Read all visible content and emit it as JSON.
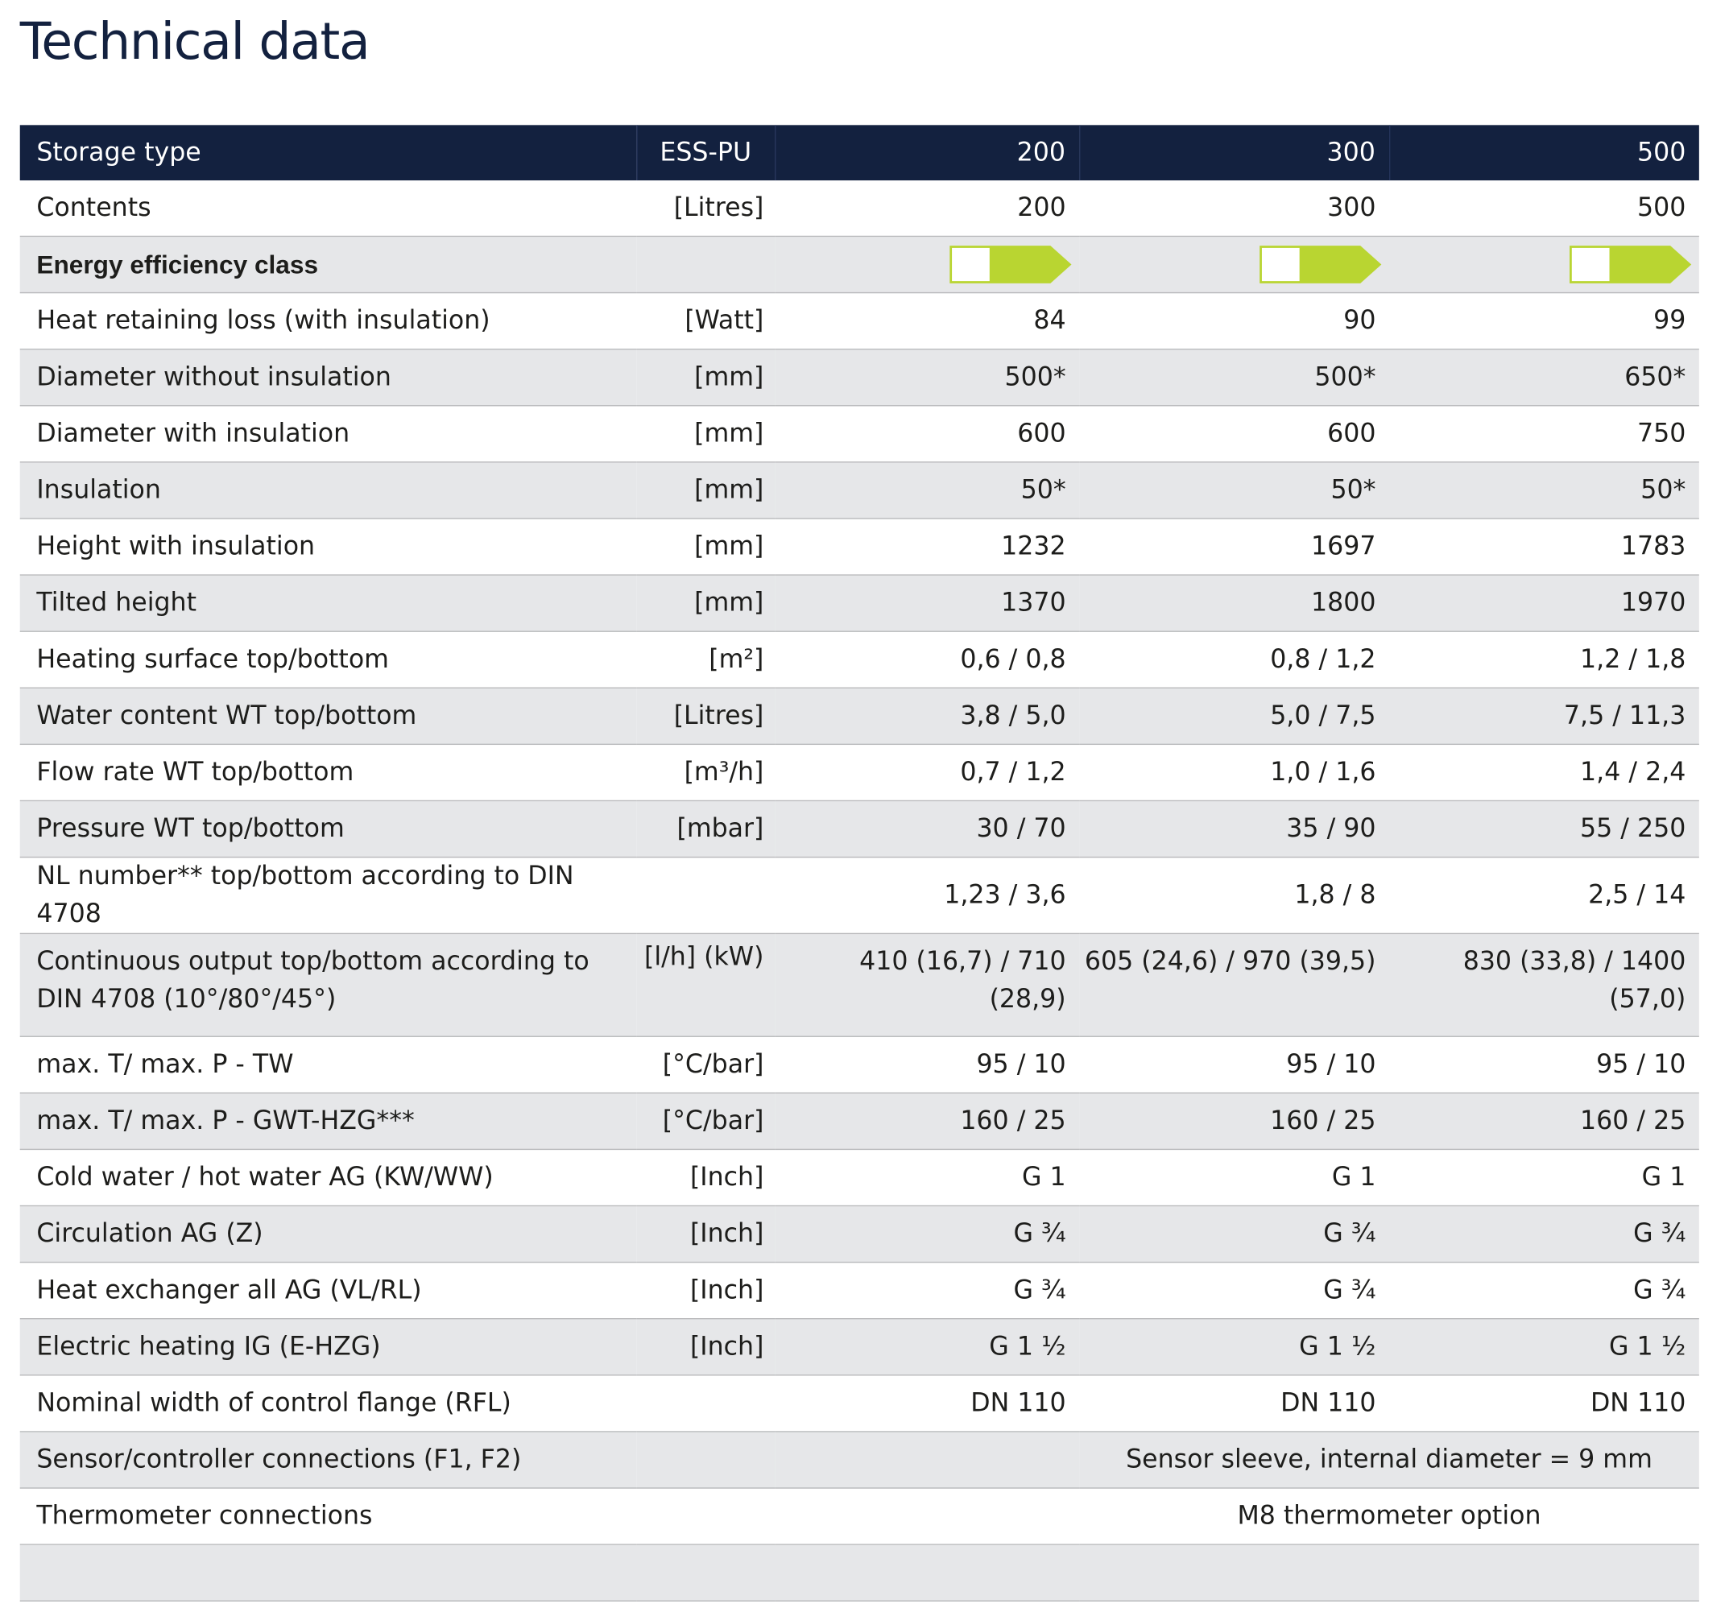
{
  "title": "Technical data",
  "table": {
    "header": [
      "Storage type",
      "ESS-PU",
      "200",
      "300",
      "500"
    ],
    "rows": [
      {
        "label": "Contents",
        "unit": "[Litres]",
        "values": [
          "200",
          "300",
          "500"
        ]
      },
      {
        "label": "Energy efficiency class"
      },
      {
        "label": "Heat retaining loss (with insulation)",
        "unit": "[Watt]",
        "values": [
          "84",
          "90",
          "99"
        ]
      },
      {
        "label": "Diameter without insulation",
        "unit": "[mm]",
        "values": [
          "500*",
          "500*",
          "650*"
        ]
      },
      {
        "label": "Diameter with insulation",
        "unit": "[mm]",
        "values": [
          "600",
          "600",
          "750"
        ]
      },
      {
        "label": "Insulation",
        "unit": "[mm]",
        "values": [
          "50*",
          "50*",
          "50*"
        ]
      },
      {
        "label": "Height with insulation",
        "unit": "[mm]",
        "values": [
          "1232",
          "1697",
          "1783"
        ]
      },
      {
        "label": "Tilted height",
        "unit": "[mm]",
        "values": [
          "1370",
          "1800",
          "1970"
        ]
      },
      {
        "label": "Heating surface top/bottom",
        "unit": "[m²]",
        "values": [
          "0,6 / 0,8",
          "0,8 / 1,2",
          "1,2 / 1,8"
        ]
      },
      {
        "label": "Water content WT top/bottom",
        "unit": "[Litres]",
        "values": [
          "3,8 / 5,0",
          "5,0 / 7,5",
          "7,5 / 11,3"
        ]
      },
      {
        "label": "Flow rate WT top/bottom",
        "unit": "[m³/h]",
        "values": [
          "0,7 / 1,2",
          "1,0 / 1,6",
          "1,4 / 2,4"
        ]
      },
      {
        "label": "Pressure WT top/bottom",
        "unit": "[mbar]",
        "values": [
          "30 / 70",
          "35 / 90",
          "55 / 250"
        ]
      },
      {
        "label": "NL number** top/bottom according to DIN 4708",
        "values": [
          "1,23 / 3,6",
          "1,8 / 8",
          "2,5 / 14"
        ]
      },
      {
        "label": "Continuous output top/bottom according to DIN 4708 (10°/80°/45°)",
        "unit": "[l/h] (kW)",
        "values": [
          "410 (16,7) / 710 (28,9)",
          "605 (24,6) / 970 (39,5)",
          "830 (33,8) / 1400 (57,0)"
        ]
      },
      {
        "label": "max. T/ max. P - TW",
        "unit": "[°C/bar]",
        "values": [
          "95 / 10",
          "95 / 10",
          "95 / 10"
        ]
      },
      {
        "label": "max. T/ max. P - GWT-HZG***",
        "unit": "[°C/bar]",
        "values": [
          "160 / 25",
          "160 / 25",
          "160 / 25"
        ]
      },
      {
        "label": "Cold water / hot water AG (KW/WW)",
        "unit": "[Inch]",
        "values": [
          "G 1",
          "G 1",
          "G 1"
        ]
      },
      {
        "label": "Circulation AG (Z)",
        "unit": "[Inch]",
        "values": [
          "G ¾",
          "G ¾",
          "G ¾"
        ]
      },
      {
        "label": "Heat exchanger all AG (VL/RL)",
        "unit": "[Inch]",
        "values": [
          "G ¾",
          "G ¾",
          "G ¾"
        ]
      },
      {
        "label": "Electric heating IG (E-HZG)",
        "unit": "[Inch]",
        "values": [
          "G 1 ½",
          "G 1 ½",
          "G 1 ½"
        ]
      },
      {
        "label": "Nominal width of control flange (RFL)",
        "values": [
          "DN 110",
          "DN 110",
          "DN 110"
        ]
      },
      {
        "label": "Sensor/controller connections (F1, F2)",
        "note": "Sensor sleeve, internal diameter = 9 mm"
      },
      {
        "label": "Thermometer connections",
        "note": "M8 thermometer option"
      }
    ]
  }
}
